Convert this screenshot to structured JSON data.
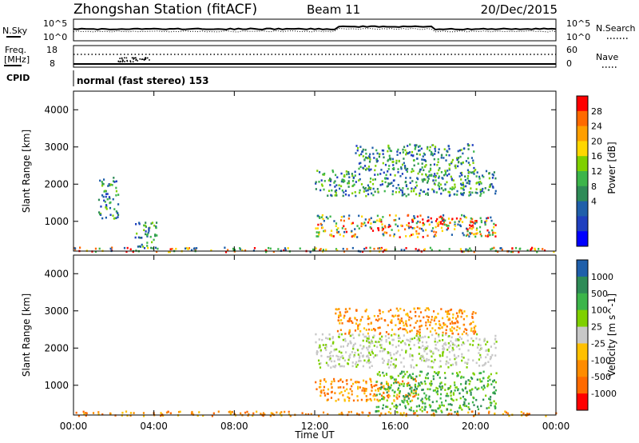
{
  "header": {
    "station": "Zhongshan Station (fitACF)",
    "beam": "Beam 11",
    "date": "20/Dec/2015"
  },
  "status_panels": {
    "nsky_label": "N.Sky",
    "nsky_ticks": [
      "10^5",
      "10^0"
    ],
    "nsearch_label": "N.Search",
    "nsearch_ticks": [
      "10^5",
      "10^0"
    ],
    "freq_label": "Freq.",
    "freq_unit": "[MHz]",
    "freq_ticks": [
      "18",
      "8"
    ],
    "nave_label": "Nave",
    "nave_ticks": [
      "60",
      "0"
    ],
    "cpid_label": "CPID",
    "cpid_text": "normal (fast stereo) 153"
  },
  "chart_data": [
    {
      "type": "heatmap",
      "name": "power",
      "ylabel": "Slant Range [km]",
      "yticks": [
        "4000",
        "3000",
        "2000",
        "1000"
      ],
      "ylim": [
        200,
        4500
      ],
      "colorbar_label": "Power [dB]",
      "colorbar_ticks": [
        "28",
        "24",
        "20",
        "16",
        "12",
        "8",
        "4"
      ],
      "colorbar_colors": [
        "#ff0000",
        "#ff6a00",
        "#ff9f00",
        "#ffd700",
        "#7fd000",
        "#3cb54a",
        "#2e8b57",
        "#1f5faa",
        "#1f3fbf",
        "#0000ff"
      ],
      "features": [
        {
          "t0": 0.0,
          "t1": 24.0,
          "r0": 200,
          "r1": 320,
          "intensity": "high"
        },
        {
          "t0": 12.0,
          "t1": 21.0,
          "r0": 600,
          "r1": 1200,
          "intensity": "high"
        },
        {
          "t0": 12.0,
          "t1": 21.0,
          "r0": 1700,
          "r1": 2400,
          "intensity": "medium"
        },
        {
          "t0": 14.0,
          "t1": 20.0,
          "r0": 2400,
          "r1": 3100,
          "intensity": "medium"
        },
        {
          "t0": 1.2,
          "t1": 2.2,
          "r0": 1100,
          "r1": 2200,
          "intensity": "medium"
        },
        {
          "t0": 3.0,
          "t1": 4.2,
          "r0": 300,
          "r1": 1000,
          "intensity": "medium"
        }
      ]
    },
    {
      "type": "heatmap",
      "name": "velocity",
      "ylabel": "Slant Range [km]",
      "yticks": [
        "4000",
        "3000",
        "2000",
        "1000"
      ],
      "ylim": [
        200,
        4500
      ],
      "colorbar_label": "Velocity [m s^-1]",
      "colorbar_ticks": [
        "1000",
        "500",
        "100",
        "25",
        "-25",
        "-100",
        "-500",
        "-1000"
      ],
      "colorbar_colors": [
        "#1f5faa",
        "#2e8b57",
        "#3cb54a",
        "#7fd000",
        "#c8c8c8",
        "#ffc000",
        "#ff8c00",
        "#ff6a00",
        "#ff0000"
      ],
      "features": [
        {
          "t0": 0.0,
          "t1": 24.0,
          "r0": 200,
          "r1": 320,
          "velocity": "negative"
        },
        {
          "t0": 12.0,
          "t1": 17.0,
          "r0": 600,
          "r1": 1200,
          "velocity": "negative"
        },
        {
          "t0": 15.0,
          "t1": 21.0,
          "r0": 300,
          "r1": 1400,
          "velocity": "positive"
        },
        {
          "t0": 12.0,
          "t1": 21.0,
          "r0": 1500,
          "r1": 2400,
          "velocity": "near-zero"
        },
        {
          "t0": 13.0,
          "t1": 20.0,
          "r0": 2400,
          "r1": 3100,
          "velocity": "negative"
        }
      ]
    }
  ],
  "x_axis": {
    "ticks": [
      "00:00",
      "04:00",
      "08:00",
      "12:00",
      "16:00",
      "20:00",
      "00:00"
    ],
    "xlabel": "Time UT"
  }
}
